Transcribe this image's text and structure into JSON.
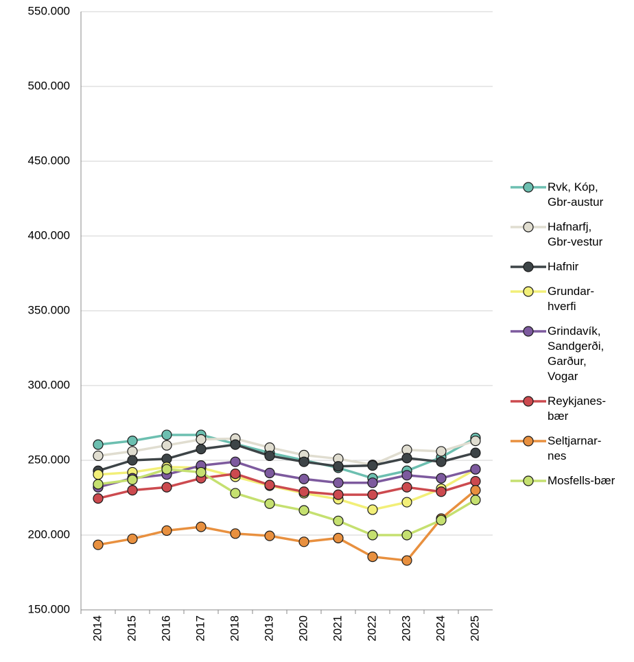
{
  "chart_data": {
    "type": "line",
    "categories": [
      "2014",
      "2015",
      "2016",
      "2017",
      "2018",
      "2019",
      "2020",
      "2021",
      "2022",
      "2023",
      "2024",
      "2025"
    ],
    "series": [
      {
        "name": "Rvk, Kóp, Gbr-austur",
        "color": "#6cbfb0",
        "values": [
          260500,
          263000,
          267000,
          267000,
          261000,
          255000,
          250000,
          245000,
          238000,
          243000,
          252000,
          265000
        ]
      },
      {
        "name": "Hafnarfj, Gbr-vestur",
        "color": "#e0ddd0",
        "values": [
          253000,
          256000,
          260000,
          264000,
          264500,
          258500,
          253500,
          251000,
          247000,
          257000,
          256000,
          263000
        ]
      },
      {
        "name": "Hafnir",
        "color": "#3d4447",
        "values": [
          243000,
          250000,
          251000,
          257500,
          260500,
          253000,
          249000,
          246000,
          246500,
          251500,
          249000,
          255000
        ]
      },
      {
        "name": "Grundar-hverfi",
        "color": "#f2ef78",
        "values": [
          240500,
          242000,
          245500,
          245000,
          239000,
          233000,
          228000,
          224000,
          217000,
          222000,
          231000,
          244000
        ]
      },
      {
        "name": "Grindavík, Sandgerði, Garður, Vogar",
        "color": "#7d5a9e",
        "values": [
          232000,
          238000,
          240500,
          246500,
          249000,
          241500,
          237500,
          235000,
          235000,
          240000,
          238000,
          244000
        ]
      },
      {
        "name": "Reykjanes-bær",
        "color": "#cc4a4f",
        "values": [
          224500,
          230000,
          232000,
          238000,
          241000,
          233500,
          229000,
          227000,
          227000,
          232000,
          229000,
          236000
        ]
      },
      {
        "name": "Seltjarnar-nes",
        "color": "#e8903f",
        "values": [
          193500,
          197500,
          203000,
          205500,
          201000,
          199500,
          195500,
          198000,
          185500,
          183000,
          211000,
          230000
        ]
      },
      {
        "name": "Mosfells-bær",
        "color": "#c5e070",
        "values": [
          234000,
          237000,
          244000,
          242000,
          228000,
          221000,
          216500,
          209500,
          200000,
          200000,
          210000,
          223500
        ]
      }
    ],
    "ylim": [
      150000,
      550000
    ],
    "yticks": [
      {
        "value": 150000,
        "label": "150.000"
      },
      {
        "value": 200000,
        "label": "200.000"
      },
      {
        "value": 250000,
        "label": "250.000"
      },
      {
        "value": 300000,
        "label": "300.000"
      },
      {
        "value": 350000,
        "label": "350.000"
      },
      {
        "value": 400000,
        "label": "400.000"
      },
      {
        "value": 450000,
        "label": "450.000"
      },
      {
        "value": 500000,
        "label": "500.000"
      },
      {
        "value": 550000,
        "label": "550.000"
      }
    ],
    "grid": true,
    "legend": "right"
  }
}
